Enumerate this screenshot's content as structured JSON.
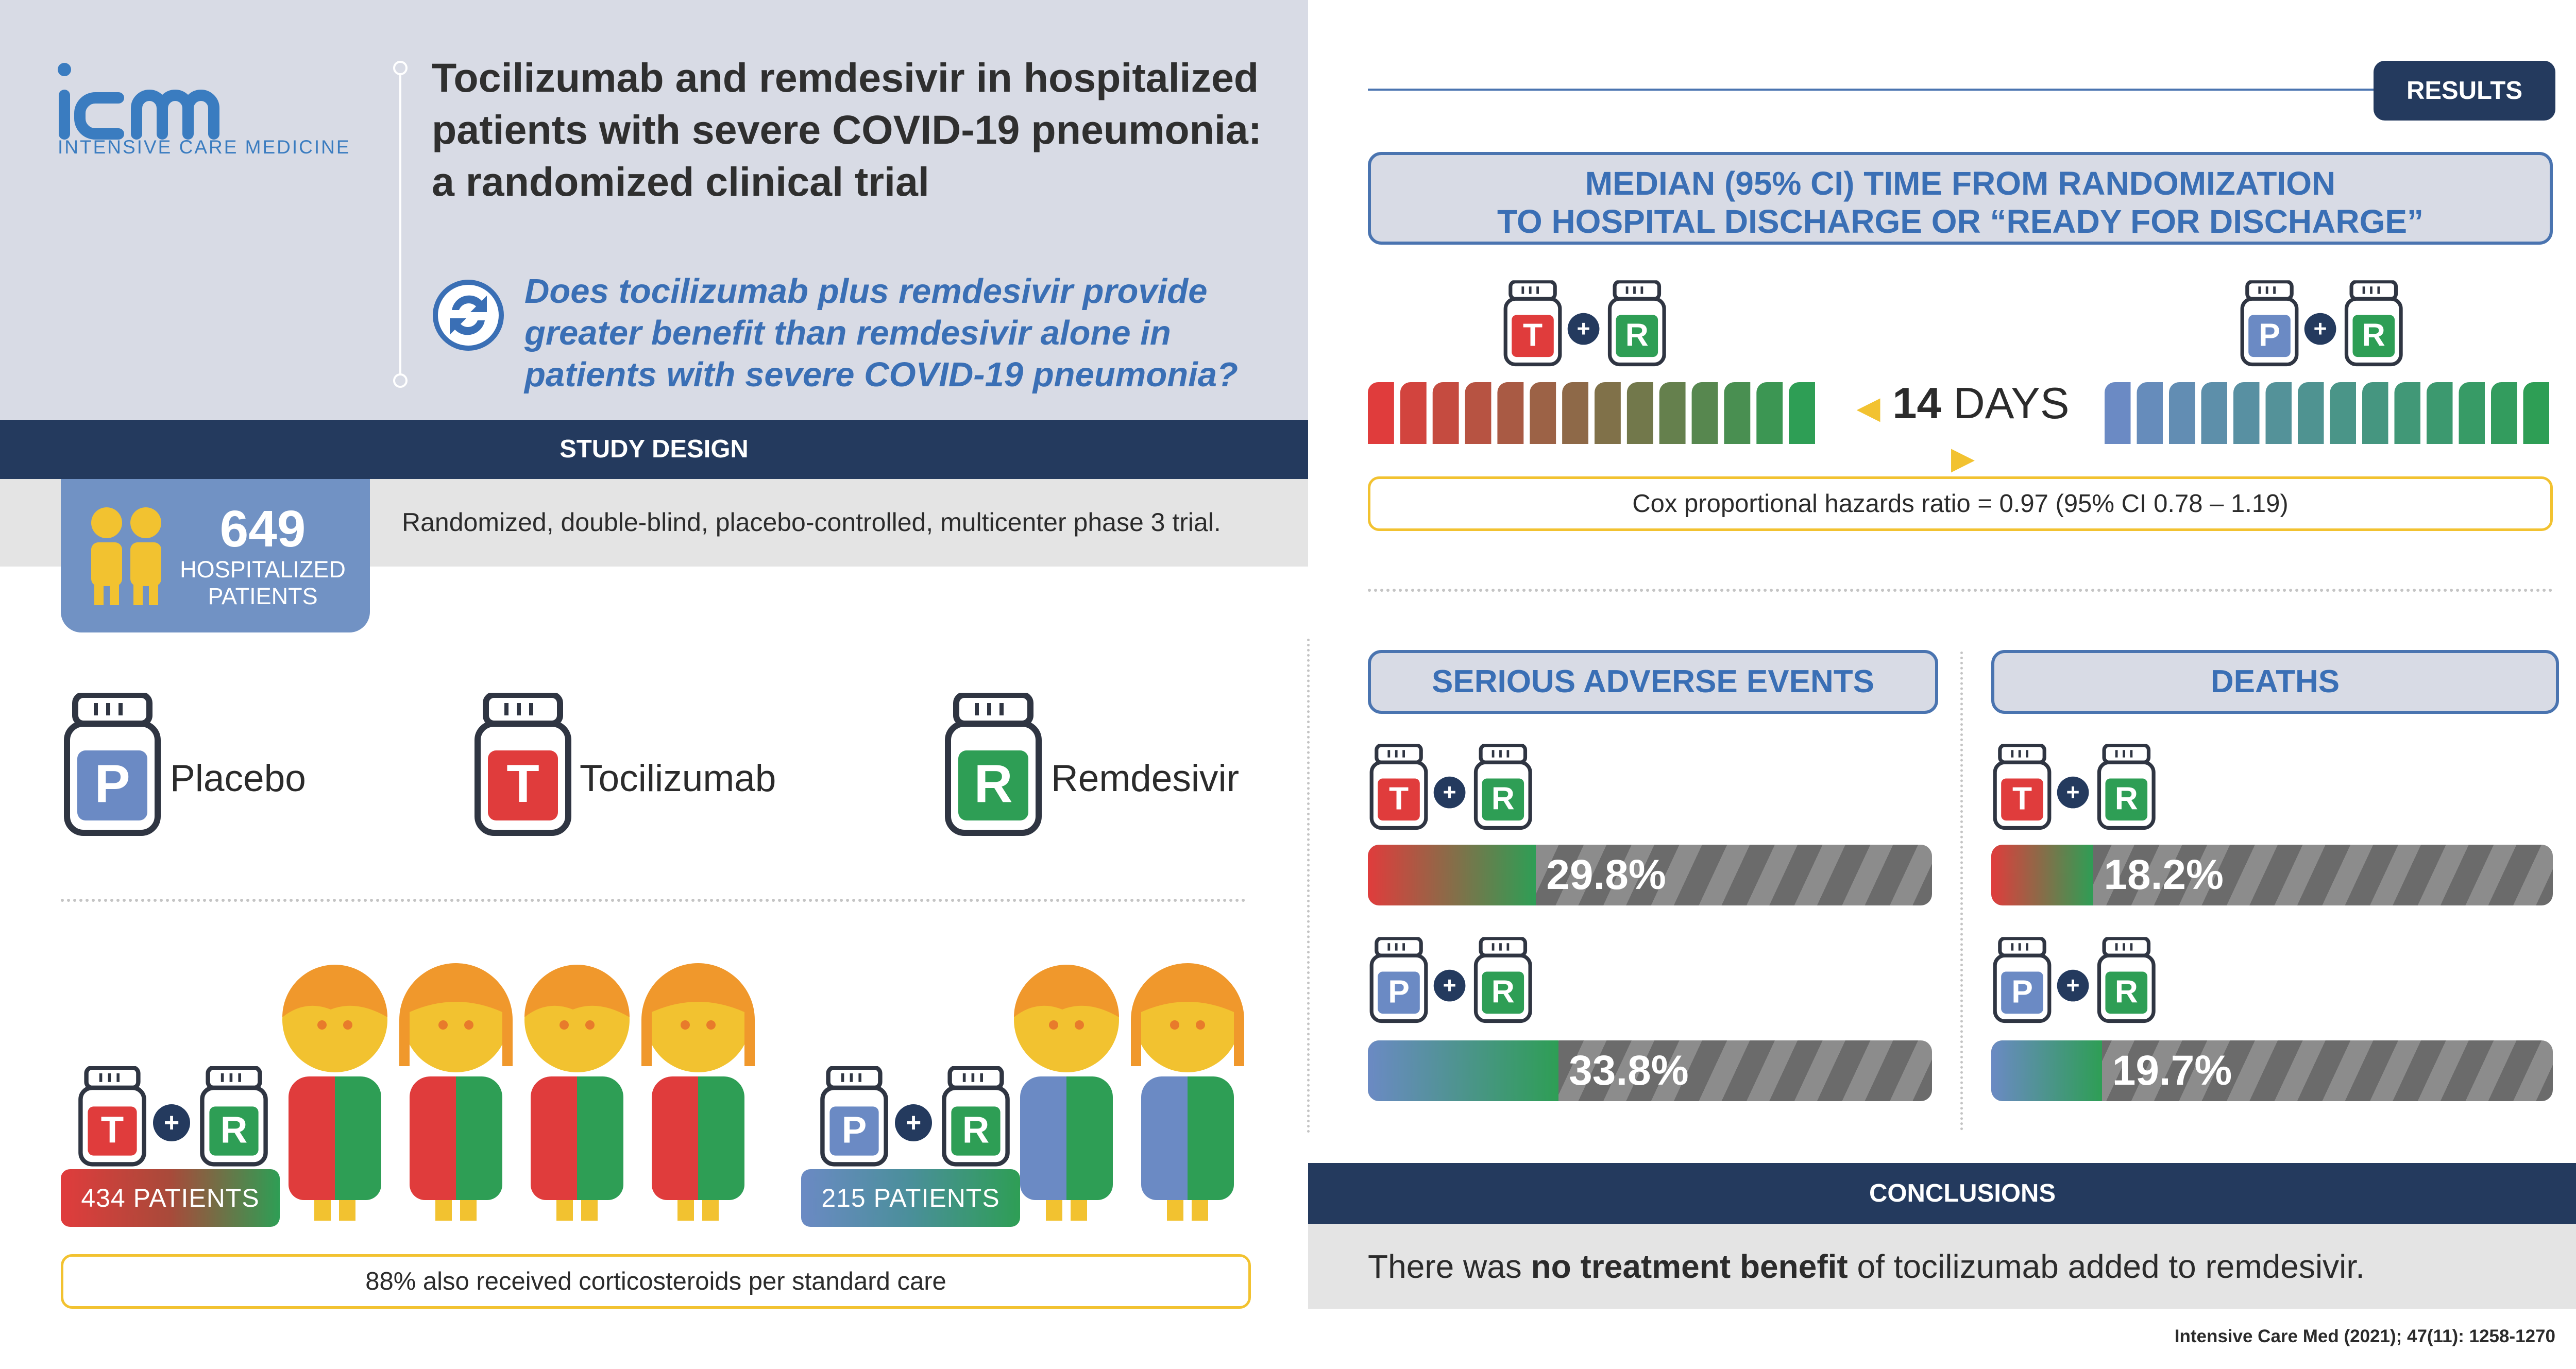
{
  "header": {
    "logo_text": "icm",
    "logo_subtitle": "INTENSIVE CARE MEDICINE",
    "title": "Tocilizumab and remdesivir in hospitalized patients with severe COVID-19 pneumonia: a randomized clinical trial",
    "question": "Does tocilizumab plus remdesivir provide greater benefit than remdesivir alone in patients with severe COVID-19 pneumonia?"
  },
  "study_design": {
    "bar_label": "STUDY DESIGN",
    "patients_count": "649",
    "patients_label": "HOSPITALIZED PATIENTS",
    "description": "Randomized, double-blind, placebo-controlled, multicenter phase 3 trial.",
    "drugs": [
      {
        "letter": "P",
        "name": "Placebo",
        "color": "#6b8ac4"
      },
      {
        "letter": "T",
        "name": "Tocilizumab",
        "color": "#e03c3c"
      },
      {
        "letter": "R",
        "name": "Remdesivir",
        "color": "#2e9e55"
      }
    ],
    "arm1_label": "434 PATIENTS",
    "arm2_label": "215 PATIENTS",
    "steroid_note": "88% also received corticosteroids per standard care"
  },
  "results": {
    "tag": "RESULTS",
    "median_header_line1": "MEDIAN (95% CI) TIME FROM RANDOMIZATION",
    "median_header_line2": "TO HOSPITAL DISCHARGE OR “READY FOR DISCHARGE”",
    "days_number": "14",
    "days_unit": "DAYS",
    "cox": "Cox proportional hazards ratio = 0.97 (95% CI 0.78 – 1.19)",
    "sae_header": "SERIOUS ADVERSE EVENTS",
    "deaths_header": "DEATHS",
    "sae_tr": "29.8%",
    "sae_pr": "33.8%",
    "deaths_tr": "18.2%",
    "deaths_pr": "19.7%",
    "sae_tr_value": 29.8,
    "sae_pr_value": 33.8,
    "deaths_tr_value": 18.2,
    "deaths_pr_value": 19.7
  },
  "conclusions": {
    "bar_label": "CONCLUSIONS",
    "text_pre": "There was ",
    "text_bold": "no treatment benefit",
    "text_post": " of tocilizumab added to remdesivir."
  },
  "citation": "Intensive Care Med (2021); 47(11): 1258-1270",
  "colors": {
    "navy": "#243a5e",
    "blue": "#3a6fb5",
    "red": "#e03c3c",
    "green": "#2e9e55",
    "placebo_blue": "#6b8ac4",
    "yellow": "#f2c230"
  }
}
